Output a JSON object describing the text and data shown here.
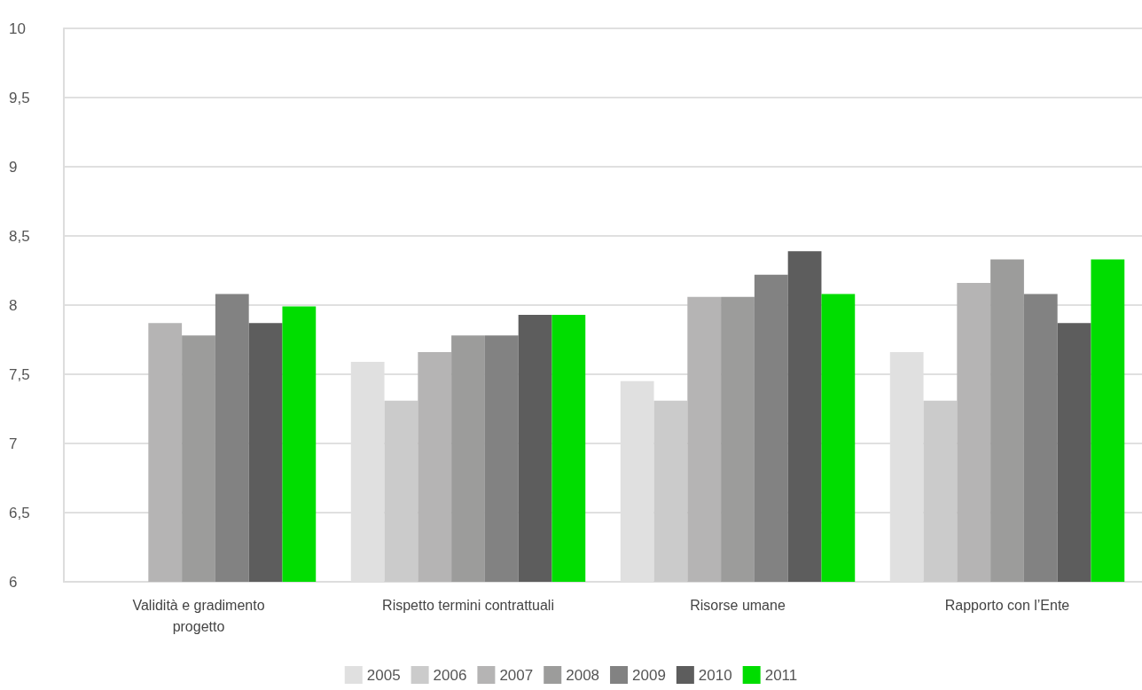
{
  "chart_data": {
    "type": "bar",
    "categories": [
      "Validità e gradimento\nprogetto",
      "Rispetto termini contrattuali",
      "Risorse umane",
      "Rapporto con l’Ente"
    ],
    "series": [
      {
        "name": "2005",
        "color": "#e0e0e0",
        "values": [
          null,
          7.59,
          7.45,
          7.66
        ]
      },
      {
        "name": "2006",
        "color": "#cbcbcb",
        "values": [
          null,
          7.31,
          7.31,
          7.31
        ]
      },
      {
        "name": "2007",
        "color": "#b5b4b4",
        "values": [
          7.87,
          7.66,
          8.06,
          8.16
        ]
      },
      {
        "name": "2008",
        "color": "#9c9c9b",
        "values": [
          7.78,
          7.78,
          8.06,
          8.33
        ]
      },
      {
        "name": "2009",
        "color": "#828282",
        "values": [
          8.08,
          7.78,
          8.22,
          8.08
        ]
      },
      {
        "name": "2010",
        "color": "#5d5d5d",
        "values": [
          7.87,
          7.93,
          8.39,
          7.87
        ]
      },
      {
        "name": "2011",
        "color": "#00dd00",
        "values": [
          7.99,
          7.93,
          8.08,
          8.33
        ]
      }
    ],
    "ylim": [
      6,
      10
    ],
    "yticks": [
      {
        "value": 6,
        "label": "6"
      },
      {
        "value": 6.5,
        "label": "6,5"
      },
      {
        "value": 7,
        "label": "7"
      },
      {
        "value": 7.5,
        "label": "7,5"
      },
      {
        "value": 8,
        "label": "8"
      },
      {
        "value": 8.5,
        "label": "8,5"
      },
      {
        "value": 9,
        "label": "9"
      },
      {
        "value": 9.5,
        "label": "9,5"
      },
      {
        "value": 10,
        "label": "10"
      }
    ],
    "grid": "y",
    "legend": "bottom"
  }
}
